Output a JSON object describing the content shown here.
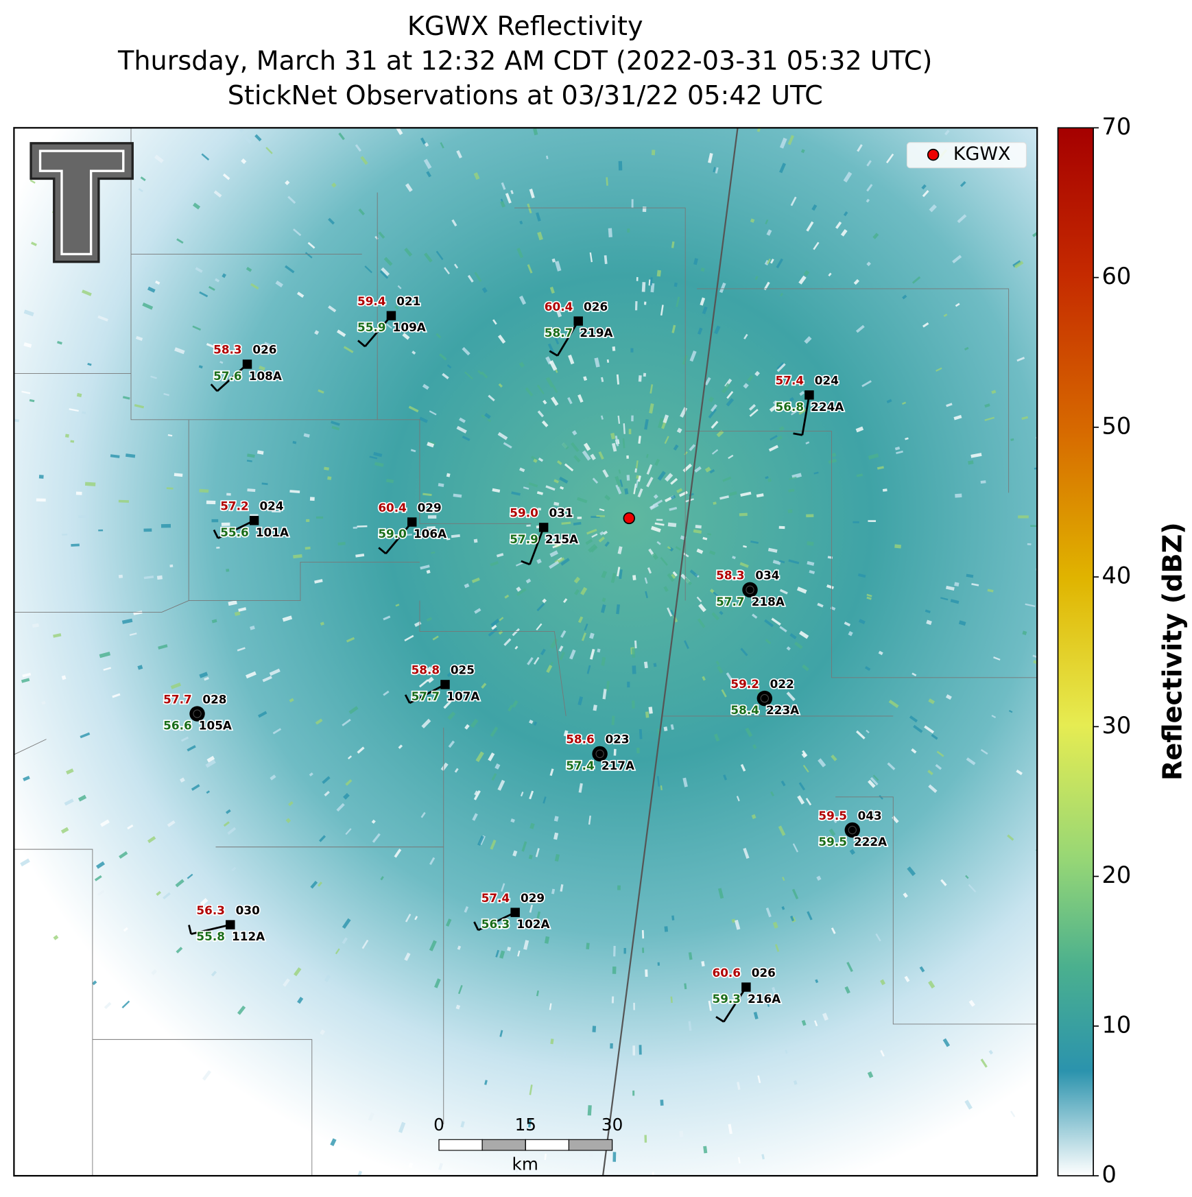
{
  "title": [
    "KGWX Reflectivity",
    "Thursday, March 31 at 12:32 AM CDT (2022-03-31 05:32 UTC)",
    "StickNet Observations at 03/31/22 05:42 UTC"
  ],
  "legend": "KGWX",
  "stations": [
    {
      "temp": "59.4",
      "code": "021",
      "dew": "55.9",
      "id": "109A"
    },
    {
      "temp": "60.4",
      "code": "026",
      "dew": "58.7",
      "id": "219A"
    },
    {
      "temp": "58.3",
      "code": "026",
      "dew": "57.6",
      "id": "108A"
    },
    {
      "temp": "57.4",
      "code": "024",
      "dew": "56.8",
      "id": "224A"
    },
    {
      "temp": "57.2",
      "code": "024",
      "dew": "55.6",
      "id": "101A"
    },
    {
      "temp": "60.4",
      "code": "029",
      "dew": "59.0",
      "id": "106A"
    },
    {
      "temp": "59.0",
      "code": "031",
      "dew": "57.9",
      "id": "215A"
    },
    {
      "temp": "58.3",
      "code": "034",
      "dew": "57.7",
      "id": "218A"
    },
    {
      "temp": "58.8",
      "code": "025",
      "dew": "57.7",
      "id": "107A"
    },
    {
      "temp": "59.2",
      "code": "022",
      "dew": "58.4",
      "id": "223A"
    },
    {
      "temp": "57.7",
      "code": "028",
      "dew": "56.6",
      "id": "105A"
    },
    {
      "temp": "58.6",
      "code": "023",
      "dew": "57.4",
      "id": "217A"
    },
    {
      "temp": "59.5",
      "code": "043",
      "dew": "59.5",
      "id": "222A"
    },
    {
      "temp": "56.3",
      "code": "030",
      "dew": "55.8",
      "id": "112A"
    },
    {
      "temp": "57.4",
      "code": "029",
      "dew": "56.3",
      "id": "102A"
    },
    {
      "temp": "60.6",
      "code": "026",
      "dew": "59.3",
      "id": "216A"
    }
  ],
  "colorbar": {
    "label": "Reflectivity (dBZ)",
    "lim": [
      0,
      70
    ],
    "ticks": [
      0,
      10,
      20,
      30,
      40,
      50,
      60,
      70
    ]
  },
  "scalebar": {
    "ticks": [
      0,
      15,
      30
    ],
    "unit": "km"
  }
}
